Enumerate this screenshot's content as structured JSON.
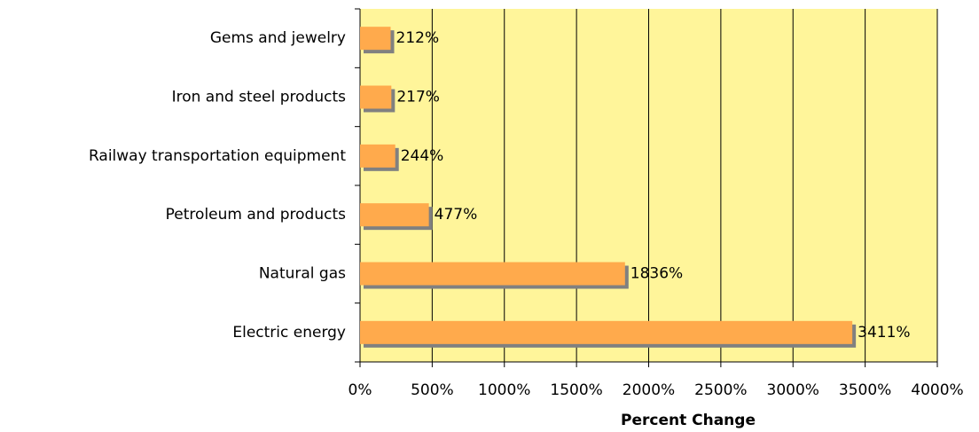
{
  "chart_data": {
    "type": "bar",
    "orientation": "horizontal",
    "x_label": "Percent Change",
    "categories": [
      "Gems and jewelry",
      "Iron and steel products",
      "Railway transportation equipment",
      "Petroleum and products",
      "Natural gas",
      "Electric energy"
    ],
    "values": [
      212,
      217,
      244,
      477,
      1836,
      3411
    ],
    "value_labels": [
      "212%",
      "217%",
      "244%",
      "477%",
      "1836%",
      "3411%"
    ],
    "color": "#ffaa4c",
    "shadow_color": "#808080",
    "background": "#fff59a",
    "xlim": [
      0,
      4000
    ],
    "xticks": [
      {
        "value": 0,
        "label": "0%"
      },
      {
        "value": 500,
        "label": "500%"
      },
      {
        "value": 1000,
        "label": "1000%"
      },
      {
        "value": 1500,
        "label": "1500%"
      },
      {
        "value": 2000,
        "label": "2000%"
      },
      {
        "value": 2500,
        "label": "2500%"
      },
      {
        "value": 3000,
        "label": "3000%"
      },
      {
        "value": 3500,
        "label": "3500%"
      },
      {
        "value": 4000,
        "label": "4000%"
      }
    ],
    "grid": true
  }
}
